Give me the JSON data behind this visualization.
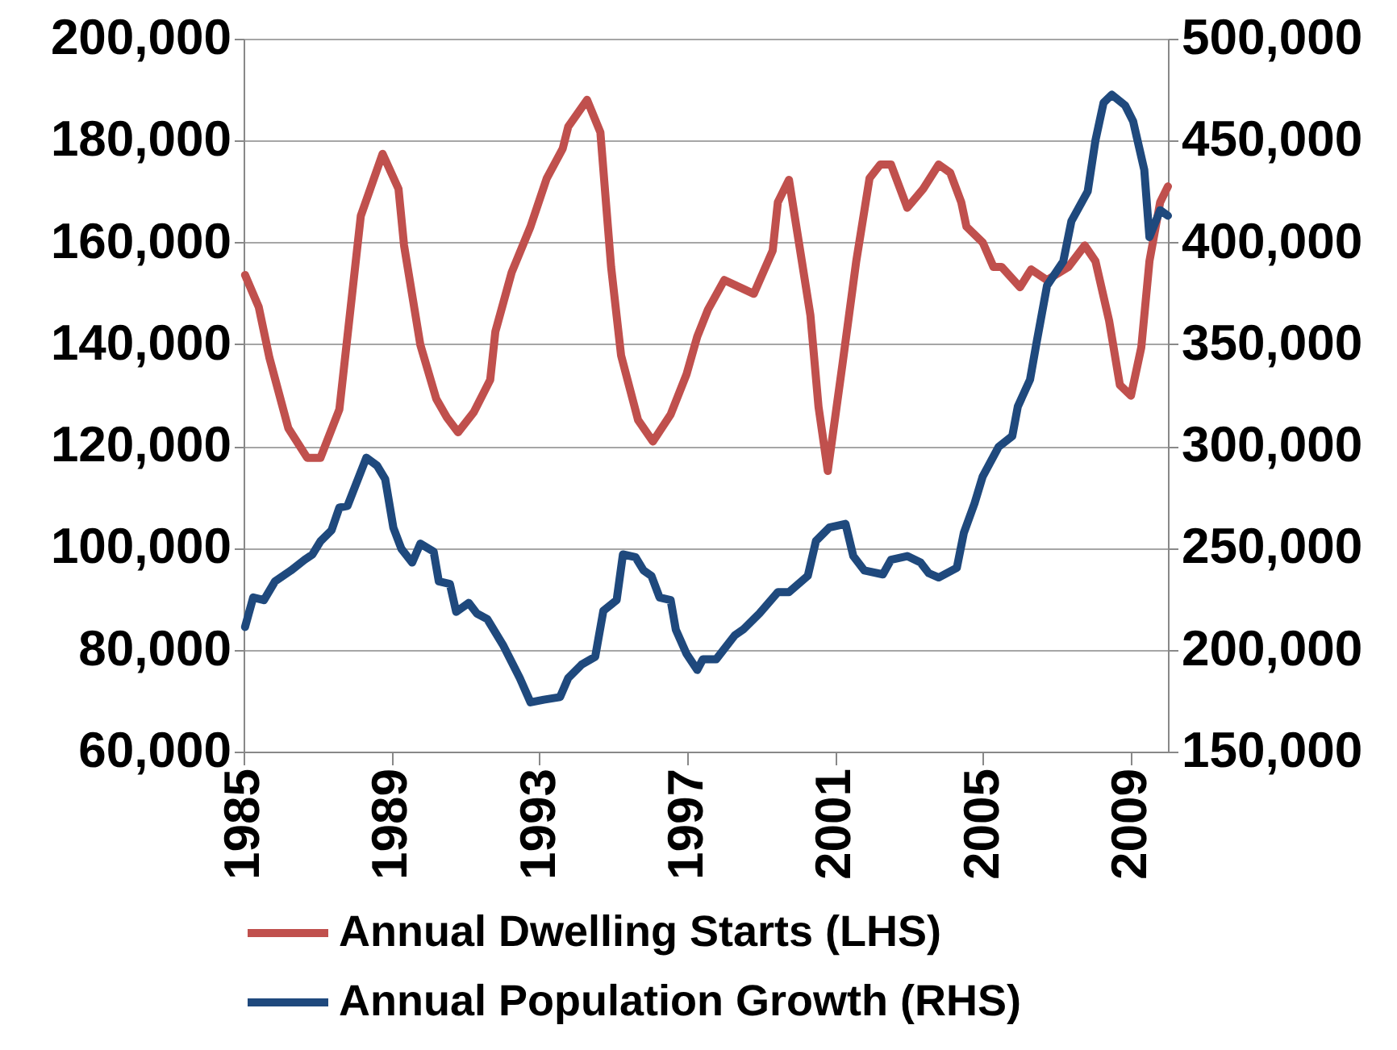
{
  "chart_data": {
    "type": "line",
    "xlim": [
      1985,
      2010
    ],
    "xticks": [
      1985,
      1989,
      1993,
      1997,
      2001,
      2005,
      2009
    ],
    "ylim": [
      60000,
      200000
    ],
    "yticks": [
      {
        "value": 60000,
        "label": "60,000"
      },
      {
        "value": 80000,
        "label": "80,000"
      },
      {
        "value": 100000,
        "label": "100,000"
      },
      {
        "value": 120000,
        "label": "120,000"
      },
      {
        "value": 140000,
        "label": "140,000"
      },
      {
        "value": 160000,
        "label": "160,000"
      },
      {
        "value": 180000,
        "label": "180,000"
      },
      {
        "value": 200000,
        "label": "200,000"
      }
    ],
    "y2lim": [
      150000,
      500000
    ],
    "y2ticks": [
      {
        "value": 150000,
        "label": "150,000"
      },
      {
        "value": 200000,
        "label": "200,000"
      },
      {
        "value": 250000,
        "label": "250,000"
      },
      {
        "value": 300000,
        "label": "300,000"
      },
      {
        "value": 350000,
        "label": "350,000"
      },
      {
        "value": 400000,
        "label": "400,000"
      },
      {
        "value": 450000,
        "label": "450,000"
      },
      {
        "value": 500000,
        "label": "500,000"
      }
    ],
    "grid": "y",
    "legend": "bottom",
    "line_style": "solid",
    "marker": "none",
    "series": [
      {
        "name": "Annual Dwelling Starts (LHS)",
        "color": "#c0504d",
        "x": [
          1985.04,
          1985.41,
          1985.7,
          1986.21,
          1986.72,
          1987.08,
          1987.59,
          1988.17,
          1988.76,
          1989.19,
          1989.34,
          1989.78,
          1990.21,
          1990.5,
          1990.8,
          1991.23,
          1991.67,
          1991.81,
          1992.25,
          1992.76,
          1993.2,
          1993.63,
          1993.78,
          1994.29,
          1994.65,
          1994.94,
          1995.21,
          1995.67,
          1996.07,
          1996.55,
          1996.98,
          1997.27,
          1997.56,
          1998.0,
          1998.8,
          1999.31,
          1999.45,
          1999.75,
          2000.33,
          2000.55,
          2000.8,
          2001.2,
          2001.57,
          2001.93,
          2002.22,
          2002.51,
          2002.95,
          2003.38,
          2003.8,
          2004.11,
          2004.41,
          2004.55,
          2004.99,
          2005.28,
          2005.5,
          2006.0,
          2006.3,
          2006.73,
          2007.31,
          2007.75,
          2008.04,
          2008.41,
          2008.7,
          2009.0,
          2009.28,
          2009.5,
          2009.79,
          2010.0
        ],
        "values": [
          153600,
          147300,
          137300,
          123500,
          117700,
          117700,
          127200,
          165200,
          177400,
          170500,
          159400,
          139900,
          129300,
          125600,
          122700,
          126700,
          133000,
          142500,
          154100,
          163100,
          172600,
          178400,
          182700,
          188000,
          181600,
          155200,
          137800,
          125100,
          120900,
          126200,
          134100,
          141500,
          146800,
          152600,
          149900,
          158400,
          167900,
          172300,
          145700,
          127700,
          115100,
          136200,
          156300,
          172600,
          175300,
          175300,
          166800,
          170500,
          175300,
          173700,
          167900,
          163100,
          160000,
          155200,
          155200,
          151200,
          154700,
          152600,
          155200,
          159400,
          156300,
          144600,
          132000,
          129900,
          139400,
          156300,
          167900,
          171000
        ]
      },
      {
        "name": "Annual Population Growth (RHS)",
        "color": "#1f497d",
        "axis": "y2",
        "x": [
          1985.04,
          1985.26,
          1985.55,
          1985.85,
          1986.28,
          1986.65,
          1986.86,
          1987.08,
          1987.38,
          1987.59,
          1987.81,
          1988.32,
          1988.61,
          1988.83,
          1989.05,
          1989.27,
          1989.56,
          1989.78,
          1990.14,
          1990.28,
          1990.58,
          1990.75,
          1991.09,
          1991.31,
          1991.59,
          1992.03,
          1992.47,
          1992.76,
          1993.12,
          1993.56,
          1993.78,
          1994.14,
          1994.51,
          1994.73,
          1995.09,
          1995.26,
          1995.6,
          1995.82,
          1996.03,
          1996.25,
          1996.55,
          1996.69,
          1996.98,
          1997.27,
          1997.42,
          1997.78,
          1998.29,
          1998.51,
          1998.95,
          1999.45,
          1999.75,
          2000.26,
          2000.48,
          2000.84,
          2001.28,
          2001.49,
          2001.79,
          2002.29,
          2002.51,
          2002.95,
          2003.31,
          2003.53,
          2003.8,
          2004.29,
          2004.48,
          2004.77,
          2004.99,
          2005.42,
          2005.79,
          2005.94,
          2006.27,
          2006.45,
          2006.73,
          2007.17,
          2007.39,
          2007.83,
          2008.04,
          2008.26,
          2008.48,
          2008.84,
          2009.06,
          2009.36,
          2009.5,
          2009.79,
          2010.0
        ],
        "values": [
          211200,
          225700,
          224400,
          233600,
          238900,
          244200,
          246800,
          253300,
          258700,
          269800,
          270600,
          294300,
          290400,
          283800,
          260000,
          249500,
          242800,
          252100,
          248200,
          233600,
          232300,
          218600,
          223000,
          217800,
          215100,
          201900,
          186100,
          174200,
          175500,
          176800,
          186100,
          192700,
          196600,
          219100,
          224400,
          246800,
          245500,
          238900,
          236300,
          225700,
          224400,
          209900,
          198000,
          190100,
          195300,
          195300,
          207200,
          209900,
          217800,
          228300,
          228300,
          236300,
          253400,
          260000,
          261800,
          246000,
          238900,
          237000,
          244200,
          246000,
          242800,
          237600,
          235500,
          240200,
          257400,
          271900,
          285100,
          299600,
          304900,
          319400,
          332600,
          351100,
          378800,
          390700,
          410500,
          425000,
          450100,
          468600,
          472500,
          467300,
          459400,
          435600,
          402600,
          415800,
          413100
        ]
      }
    ]
  }
}
